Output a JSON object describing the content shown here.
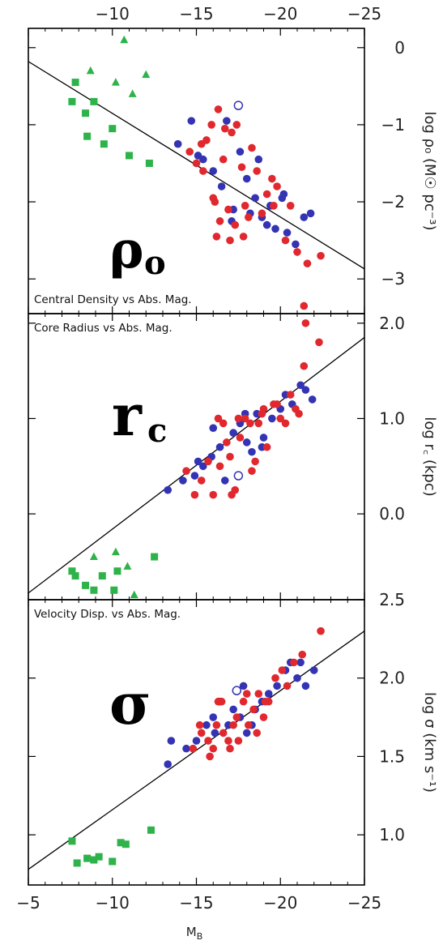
{
  "chart_data": [
    {
      "type": "scatter",
      "id": "density",
      "symbol": "ρ",
      "symbol_sub": "o",
      "annotation": "Central Density vs Abs. Mag.",
      "ylabel": "log ρ₀  (M☉ pc⁻³)",
      "xlim": [
        -5,
        -25
      ],
      "ylim": [
        -3.45,
        0.25
      ],
      "yticks": [
        0,
        -1,
        -2,
        -3
      ],
      "ytick_labels": [
        "0",
        "−1",
        "−2",
        "−3"
      ],
      "fit_line": [
        [
          -5,
          -0.18
        ],
        [
          -25,
          -2.87
        ]
      ],
      "series": [
        {
          "color": "#2db34a",
          "marker": "square",
          "points": [
            [
              -7.8,
              -0.45
            ],
            [
              -7.6,
              -0.7
            ],
            [
              -8.5,
              -1.15
            ],
            [
              -8.9,
              -0.7
            ],
            [
              -10,
              -1.05
            ],
            [
              -9.5,
              -1.25
            ],
            [
              -11,
              -1.4
            ],
            [
              -12.2,
              -1.5
            ],
            [
              -8.4,
              -0.85
            ]
          ]
        },
        {
          "color": "#2db34a",
          "marker": "triangle",
          "points": [
            [
              -10.7,
              0.1
            ],
            [
              -11.2,
              -0.6
            ],
            [
              -12,
              -0.35
            ],
            [
              -10.2,
              -0.45
            ],
            [
              -8.7,
              -0.3
            ]
          ]
        },
        {
          "color": "#3333b3",
          "marker": "circle",
          "points": [
            [
              -14.7,
              -0.95
            ],
            [
              -16,
              -1.6
            ],
            [
              -16.5,
              -1.8
            ],
            [
              -17.2,
              -2.1
            ],
            [
              -17.6,
              -1.35
            ],
            [
              -18,
              -1.7
            ],
            [
              -18.5,
              -1.95
            ],
            [
              -18.9,
              -2.2
            ],
            [
              -19.4,
              -2.05
            ],
            [
              -19.7,
              -2.35
            ],
            [
              -20.1,
              -1.95
            ],
            [
              -20.4,
              -2.4
            ],
            [
              -20.9,
              -2.55
            ],
            [
              -21.4,
              -2.2
            ],
            [
              -21.8,
              -2.15
            ],
            [
              -19.2,
              -2.3
            ],
            [
              -18.2,
              -2.15
            ],
            [
              -17.1,
              -2.25
            ],
            [
              -16.8,
              -0.95
            ],
            [
              -15.4,
              -1.45
            ],
            [
              -15.1,
              -1.4
            ],
            [
              -13.9,
              -1.25
            ],
            [
              -18.7,
              -1.45
            ],
            [
              -20.2,
              -1.9
            ]
          ]
        },
        {
          "color": "#e0282e",
          "marker": "circle",
          "points": [
            [
              -14.6,
              -1.35
            ],
            [
              -15.3,
              -1.25
            ],
            [
              -15.6,
              -1.2
            ],
            [
              -15.9,
              -1.0
            ],
            [
              -16.3,
              -0.8
            ],
            [
              -16.6,
              -1.45
            ],
            [
              -17.1,
              -1.1
            ],
            [
              -17.4,
              -1.0
            ],
            [
              -17.7,
              -1.55
            ],
            [
              -18.3,
              -1.3
            ],
            [
              -18.6,
              -1.6
            ],
            [
              -18.9,
              -2.15
            ],
            [
              -19.2,
              -1.9
            ],
            [
              -19.5,
              -1.7
            ],
            [
              -19.8,
              -1.8
            ],
            [
              -20.3,
              -2.5
            ],
            [
              -20.6,
              -2.05
            ],
            [
              -21.0,
              -2.65
            ],
            [
              -21.6,
              -2.8
            ],
            [
              -22.4,
              -2.7
            ],
            [
              -21.4,
              -3.35
            ],
            [
              -16.1,
              -2.0
            ],
            [
              -16.4,
              -2.25
            ],
            [
              -16.9,
              -2.1
            ],
            [
              -17.3,
              -2.3
            ],
            [
              -17.8,
              -2.45
            ],
            [
              -18.1,
              -2.2
            ],
            [
              -16.2,
              -2.45
            ],
            [
              -17.0,
              -2.5
            ],
            [
              -15.0,
              -1.5
            ],
            [
              -15.4,
              -1.6
            ],
            [
              -16.0,
              -1.95
            ],
            [
              -16.7,
              -1.05
            ],
            [
              -19.6,
              -2.05
            ],
            [
              -17.9,
              -2.05
            ]
          ]
        },
        {
          "color": "#3333b3",
          "marker": "open-circle",
          "points": [
            [
              -17.5,
              -0.75
            ]
          ]
        }
      ]
    },
    {
      "type": "scatter",
      "id": "core-radius",
      "symbol": "r",
      "symbol_sub": "c",
      "annotation": "Core Radius vs Abs. Mag.",
      "ylabel": "log r꜀  (kpc)",
      "xlim": [
        -5,
        -25
      ],
      "ylim": [
        -0.9,
        2.1
      ],
      "yticks": [
        2.0,
        1.0,
        0.0
      ],
      "ytick_labels": [
        "2.0",
        "1.0",
        "0.0"
      ],
      "fit_line": [
        [
          -5,
          -0.83
        ],
        [
          -25,
          1.85
        ]
      ],
      "series": [
        {
          "color": "#2db34a",
          "marker": "square",
          "points": [
            [
              -7.8,
              -0.65
            ],
            [
              -8.4,
              -0.75
            ],
            [
              -8.9,
              -0.8
            ],
            [
              -9.4,
              -0.65
            ],
            [
              -10.3,
              -0.6
            ],
            [
              -10.1,
              -0.8
            ],
            [
              -12.5,
              -0.45
            ],
            [
              -9.7,
              -0.95
            ],
            [
              -7.6,
              -0.6
            ]
          ]
        },
        {
          "color": "#2db34a",
          "marker": "triangle",
          "points": [
            [
              -8.9,
              -0.45
            ],
            [
              -10.2,
              -0.4
            ],
            [
              -10.9,
              -0.55
            ],
            [
              -11.3,
              -0.85
            ],
            [
              -12.1,
              -0.95
            ]
          ]
        },
        {
          "color": "#3333b3",
          "marker": "circle",
          "points": [
            [
              -13.3,
              0.25
            ],
            [
              -14.2,
              0.35
            ],
            [
              -14.9,
              0.4
            ],
            [
              -15.4,
              0.5
            ],
            [
              -15.9,
              0.6
            ],
            [
              -16.4,
              0.7
            ],
            [
              -16.7,
              0.35
            ],
            [
              -17.2,
              0.85
            ],
            [
              -17.6,
              0.95
            ],
            [
              -18.0,
              0.75
            ],
            [
              -18.3,
              0.65
            ],
            [
              -18.6,
              1.05
            ],
            [
              -19.0,
              0.8
            ],
            [
              -19.5,
              1.0
            ],
            [
              -20.0,
              1.1
            ],
            [
              -20.3,
              1.25
            ],
            [
              -20.7,
              1.15
            ],
            [
              -21.2,
              1.35
            ],
            [
              -21.5,
              1.3
            ],
            [
              -21.9,
              1.2
            ],
            [
              -17.9,
              1.05
            ],
            [
              -16.0,
              0.9
            ],
            [
              -15.1,
              0.55
            ],
            [
              -18.9,
              0.7
            ]
          ]
        },
        {
          "color": "#e0282e",
          "marker": "circle",
          "points": [
            [
              -14.4,
              0.45
            ],
            [
              -14.9,
              0.2
            ],
            [
              -15.3,
              0.35
            ],
            [
              -15.7,
              0.55
            ],
            [
              -16.0,
              0.2
            ],
            [
              -16.3,
              1.0
            ],
            [
              -16.6,
              0.95
            ],
            [
              -17.0,
              0.6
            ],
            [
              -17.3,
              0.25
            ],
            [
              -17.6,
              0.8
            ],
            [
              -17.9,
              1.0
            ],
            [
              -18.2,
              0.95
            ],
            [
              -18.5,
              0.55
            ],
            [
              -18.9,
              1.05
            ],
            [
              -19.2,
              0.7
            ],
            [
              -19.6,
              1.15
            ],
            [
              -20.0,
              1.0
            ],
            [
              -20.3,
              0.95
            ],
            [
              -20.6,
              1.25
            ],
            [
              -21.1,
              1.05
            ],
            [
              -21.4,
              1.55
            ],
            [
              -22.3,
              1.8
            ],
            [
              -21.5,
              2.0
            ],
            [
              -16.4,
              0.5
            ],
            [
              -17.1,
              0.2
            ],
            [
              -18.3,
              0.45
            ],
            [
              -19.0,
              1.1
            ],
            [
              -19.8,
              1.15
            ],
            [
              -20.9,
              1.1
            ],
            [
              -16.8,
              0.75
            ],
            [
              -17.5,
              1.0
            ],
            [
              -18.7,
              0.95
            ]
          ]
        },
        {
          "color": "#3333b3",
          "marker": "open-circle",
          "points": [
            [
              -17.5,
              0.4
            ]
          ]
        }
      ]
    },
    {
      "type": "scatter",
      "id": "velocity-dispersion",
      "symbol": "σ",
      "symbol_sub": "",
      "annotation": "Velocity Disp. vs Abs. Mag.",
      "ylabel": "log σ  (km s⁻¹)",
      "xlim": [
        -5,
        -25
      ],
      "ylim": [
        0.68,
        2.5
      ],
      "yticks": [
        2.5,
        2.0,
        1.5,
        1.0
      ],
      "ytick_labels": [
        "2.5",
        "2.0",
        "1.5",
        "1.0"
      ],
      "xticks": [
        -5,
        -10,
        -15,
        -20,
        -25
      ],
      "xtick_labels": [
        "−5",
        "−10",
        "−15",
        "−20",
        "−25"
      ],
      "xlabel": "M_B",
      "fit_line": [
        [
          -5,
          0.78
        ],
        [
          -25,
          2.3
        ]
      ],
      "series": [
        {
          "color": "#2db34a",
          "marker": "square",
          "points": [
            [
              -7.6,
              0.96
            ],
            [
              -7.9,
              0.82
            ],
            [
              -8.5,
              0.85
            ],
            [
              -8.9,
              0.84
            ],
            [
              -9.2,
              0.86
            ],
            [
              -10.0,
              0.83
            ],
            [
              -10.5,
              0.95
            ],
            [
              -10.8,
              0.94
            ],
            [
              -12.3,
              1.03
            ]
          ]
        },
        {
          "color": "#3333b3",
          "marker": "circle",
          "points": [
            [
              -13.3,
              1.45
            ],
            [
              -13.5,
              1.6
            ],
            [
              -14.4,
              1.55
            ],
            [
              -15.0,
              1.6
            ],
            [
              -15.6,
              1.7
            ],
            [
              -16.0,
              1.75
            ],
            [
              -16.4,
              1.85
            ],
            [
              -16.9,
              1.7
            ],
            [
              -17.2,
              1.8
            ],
            [
              -17.6,
              1.75
            ],
            [
              -18.0,
              1.65
            ],
            [
              -18.5,
              1.8
            ],
            [
              -18.9,
              1.85
            ],
            [
              -19.3,
              1.9
            ],
            [
              -19.8,
              1.95
            ],
            [
              -20.3,
              2.05
            ],
            [
              -20.6,
              2.1
            ],
            [
              -21.0,
              2.0
            ],
            [
              -21.5,
              1.95
            ],
            [
              -22.0,
              2.05
            ],
            [
              -21.2,
              2.1
            ],
            [
              -17.8,
              1.95
            ],
            [
              -16.1,
              1.65
            ],
            [
              -18.3,
              1.7
            ]
          ]
        },
        {
          "color": "#e0282e",
          "marker": "circle",
          "points": [
            [
              -14.8,
              1.55
            ],
            [
              -15.3,
              1.65
            ],
            [
              -15.7,
              1.6
            ],
            [
              -16.0,
              1.55
            ],
            [
              -16.3,
              1.85
            ],
            [
              -16.6,
              1.65
            ],
            [
              -16.9,
              1.6
            ],
            [
              -17.2,
              1.7
            ],
            [
              -17.5,
              1.6
            ],
            [
              -17.8,
              1.85
            ],
            [
              -18.1,
              1.7
            ],
            [
              -18.4,
              1.8
            ],
            [
              -18.7,
              1.9
            ],
            [
              -19.0,
              1.75
            ],
            [
              -19.3,
              1.85
            ],
            [
              -19.7,
              2.0
            ],
            [
              -20.1,
              2.05
            ],
            [
              -20.4,
              1.95
            ],
            [
              -20.8,
              2.1
            ],
            [
              -21.3,
              2.15
            ],
            [
              -22.4,
              2.3
            ],
            [
              -15.2,
              1.7
            ],
            [
              -16.5,
              1.85
            ],
            [
              -17.0,
              1.55
            ],
            [
              -18.6,
              1.65
            ],
            [
              -19.1,
              1.85
            ],
            [
              -17.4,
              1.75
            ],
            [
              -16.2,
              1.7
            ],
            [
              -15.8,
              1.5
            ],
            [
              -18.0,
              1.9
            ]
          ]
        },
        {
          "color": "#3333b3",
          "marker": "open-circle",
          "points": [
            [
              -17.4,
              1.92
            ]
          ]
        }
      ]
    }
  ],
  "top_axis": {
    "xticks": [
      -10,
      -15,
      -20,
      -25
    ],
    "xtick_labels": [
      "−10",
      "−15",
      "−20",
      "−25"
    ]
  }
}
